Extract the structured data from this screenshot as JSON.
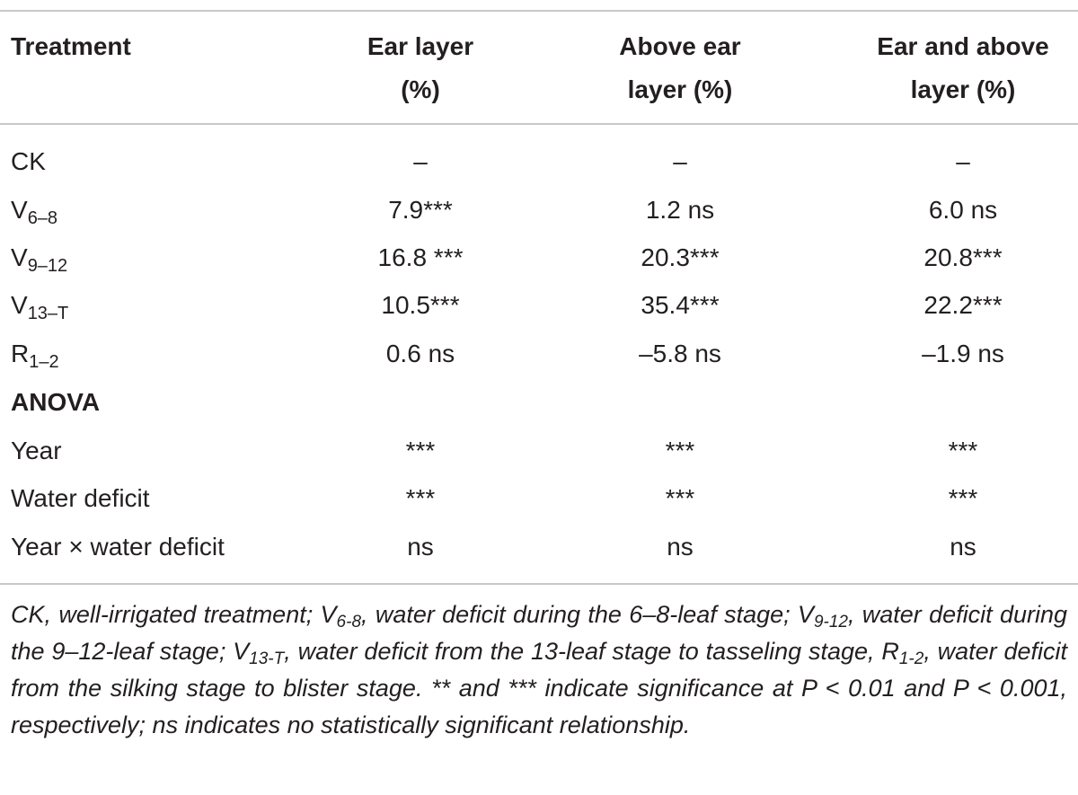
{
  "table": {
    "header": [
      "Treatment",
      [
        "Ear layer",
        "(%)"
      ],
      [
        "Above ear",
        "layer (%)"
      ],
      [
        "Ear and above",
        "layer (%)"
      ]
    ],
    "rows": [
      [
        "CK",
        "–",
        "–",
        "–"
      ],
      [
        {
          "base": "V",
          "sub": "6–8"
        },
        "7.9***",
        "1.2 ns",
        "6.0 ns"
      ],
      [
        {
          "base": "V",
          "sub": "9–12"
        },
        "16.8 ***",
        "20.3***",
        "20.8***"
      ],
      [
        {
          "base": "V",
          "sub": "13–T"
        },
        "10.5***",
        "35.4***",
        "22.2***"
      ],
      [
        {
          "base": "R",
          "sub": "1–2"
        },
        "0.6 ns",
        "–5.8 ns",
        "–1.9 ns"
      ]
    ],
    "section": "ANOVA",
    "anova_rows": [
      [
        "Year",
        "***",
        "***",
        "***"
      ],
      [
        "Water deficit",
        "***",
        "***",
        "***"
      ],
      [
        "Year × water deficit",
        "ns",
        "ns",
        "ns"
      ]
    ]
  },
  "footnote": [
    {
      "text": "CK, well-irrigated treatment; V"
    },
    {
      "sub": "6-8"
    },
    {
      "text": ", water deficit during the 6–8-leaf stage; V"
    },
    {
      "sub": "9-12"
    },
    {
      "text": ", water deficit during the 9–12-leaf stage; V"
    },
    {
      "sub": "13-T"
    },
    {
      "text": ", water deficit from the 13-leaf stage to tasseling stage, R"
    },
    {
      "sub": "1-2"
    },
    {
      "text": ", water deficit from the silking stage to blister stage. ** and *** indicate significance at P < 0.01 and P < 0.001, respectively; ns indicates no statistically significant relationship."
    }
  ]
}
